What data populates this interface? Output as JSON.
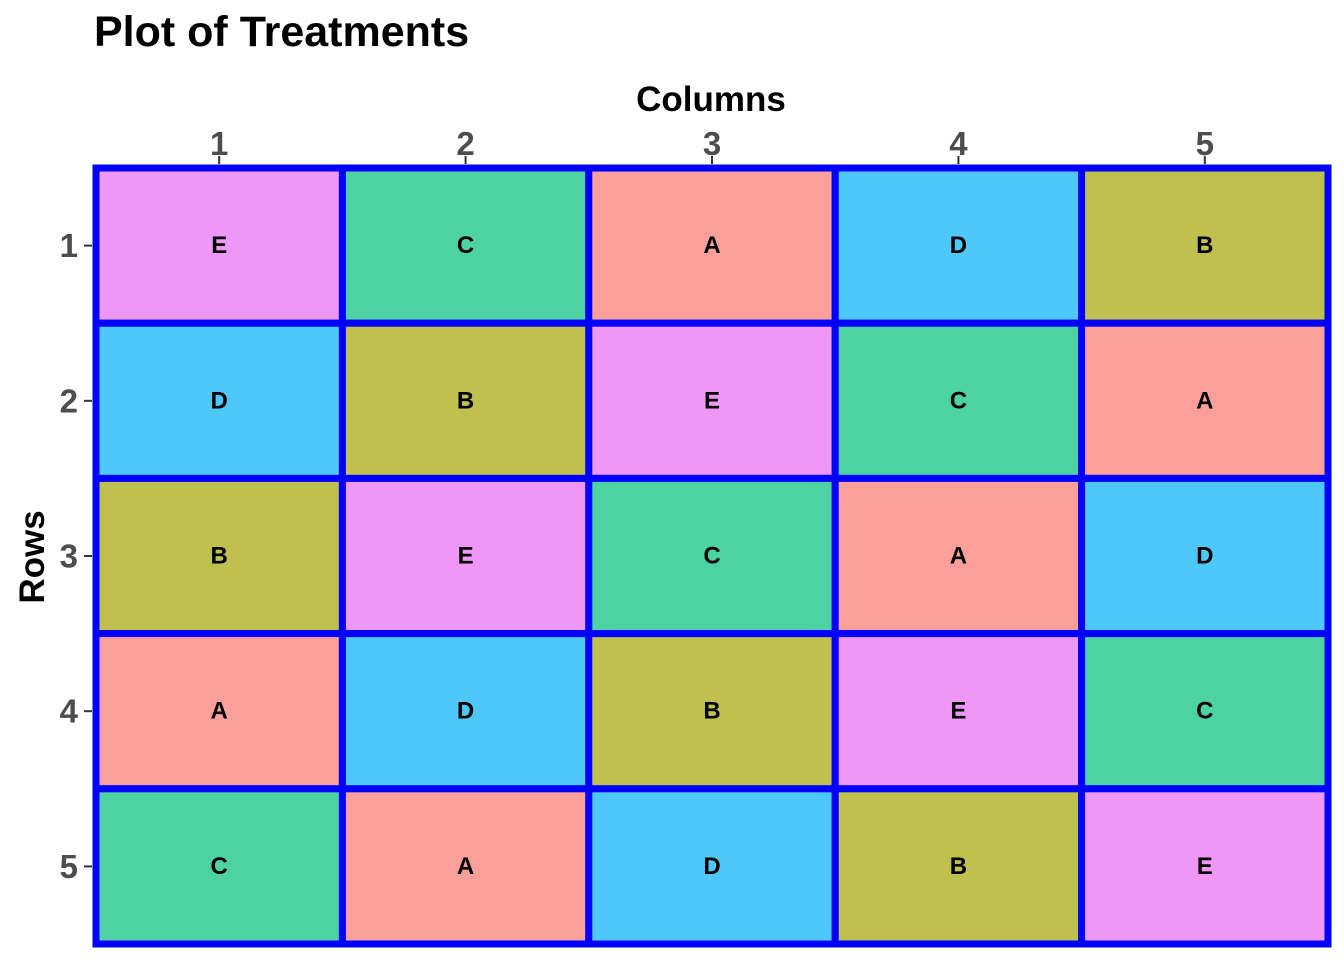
{
  "chart_data": {
    "type": "heatmap",
    "title": "Plot of Treatments",
    "xlabel": "Columns",
    "ylabel": "Rows",
    "x_axis_position": "top",
    "y_axis_reversed": true,
    "columns": [
      1,
      2,
      3,
      4,
      5
    ],
    "rows": [
      1,
      2,
      3,
      4,
      5
    ],
    "cells": [
      [
        "E",
        "C",
        "A",
        "D",
        "B"
      ],
      [
        "D",
        "B",
        "E",
        "C",
        "A"
      ],
      [
        "B",
        "E",
        "C",
        "A",
        "D"
      ],
      [
        "A",
        "D",
        "B",
        "E",
        "C"
      ],
      [
        "C",
        "A",
        "D",
        "B",
        "E"
      ]
    ],
    "treatment_colors": {
      "A": "#F8766D",
      "B": "#A3A500",
      "C": "#00BF7D",
      "D": "#00B0F6",
      "E": "#E76BF3"
    },
    "fill_alpha": 0.7,
    "cell_border_color": "#0000FF",
    "legend": "none",
    "grid": false
  }
}
